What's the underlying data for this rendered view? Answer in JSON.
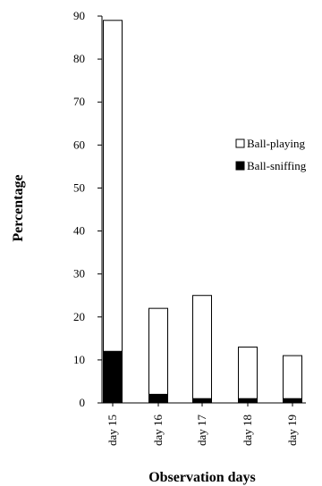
{
  "chart_data": {
    "type": "bar",
    "stacked": true,
    "categories": [
      "day 15",
      "day 16",
      "day 17",
      "day 18",
      "day 19"
    ],
    "series": [
      {
        "name": "Ball-sniffing",
        "values": [
          12,
          2,
          1,
          1,
          1
        ],
        "color": "#000000"
      },
      {
        "name": "Ball-playing",
        "values": [
          77,
          20,
          24,
          12,
          10
        ],
        "color": "#ffffff"
      }
    ],
    "title": "",
    "xlabel": "Observation days",
    "ylabel": "Percentage",
    "ylim": [
      0,
      90
    ],
    "yticks": [
      0,
      10,
      20,
      30,
      40,
      50,
      60,
      70,
      80,
      90
    ],
    "grid": false,
    "legend": {
      "position": "right",
      "entries": [
        {
          "label": "Ball-playing",
          "marker": "open-square"
        },
        {
          "label": "Ball-sniffing",
          "marker": "filled-square"
        }
      ]
    }
  }
}
